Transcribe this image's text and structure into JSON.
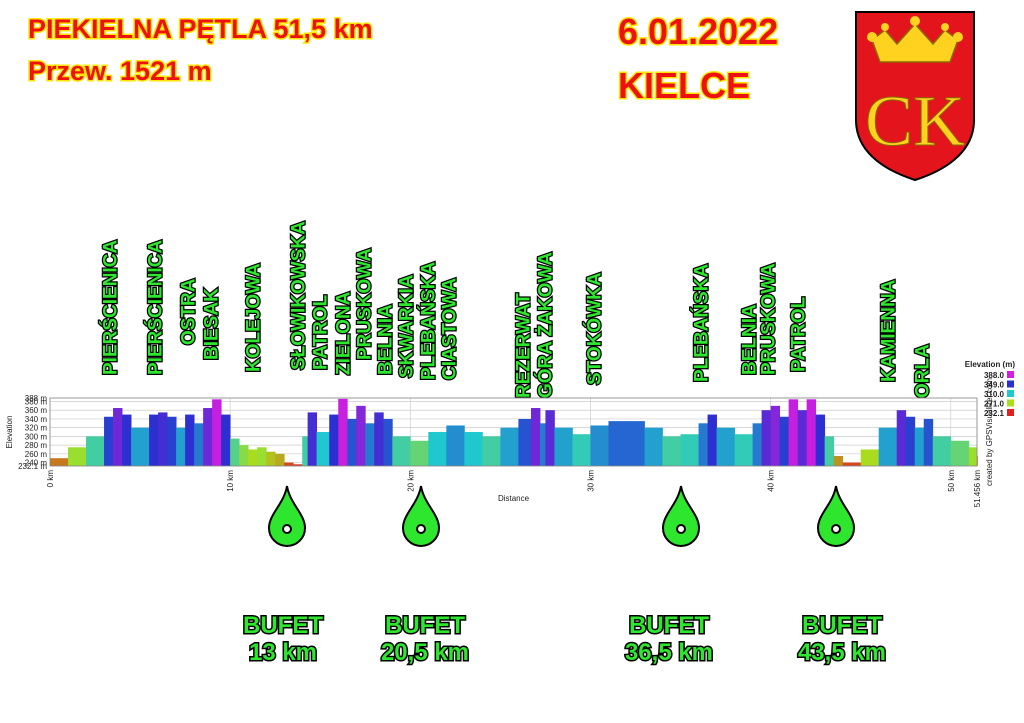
{
  "header": {
    "title": "PIEKIELNA PĘTLA 51,5 km",
    "ascent": "Przew. 1521 m",
    "date": "6.01.2022",
    "city": "KIELCE",
    "emblem": "CK"
  },
  "stations": [
    {
      "label": "BUFET",
      "distance": "13 km"
    },
    {
      "label": "BUFET",
      "distance": "20,5 km"
    },
    {
      "label": "BUFET",
      "distance": "36,5 km"
    },
    {
      "label": "BUFET",
      "distance": "43,5 km"
    }
  ],
  "chart_data": {
    "type": "area",
    "x_label": "Distance",
    "y_label": "Elevation",
    "credit": "created by GPSVisualizer.com",
    "x": [
      0,
      1,
      2,
      3,
      3.5,
      4,
      4.5,
      5,
      5.5,
      6,
      6.5,
      7,
      7.5,
      8,
      8.5,
      9,
      9.5,
      10,
      10.5,
      11,
      11.5,
      12,
      12.5,
      13,
      13.5,
      14,
      14.3,
      14.8,
      15.5,
      16,
      16.5,
      17,
      17.5,
      18,
      18.5,
      19,
      20,
      21,
      22,
      23,
      24,
      25,
      26,
      26.7,
      27.2,
      27.5,
      28,
      29,
      30,
      31,
      32,
      33,
      34,
      35,
      36,
      36.5,
      37,
      38,
      39,
      39.5,
      40,
      40.5,
      41,
      41.5,
      42,
      42.5,
      43,
      43.5,
      44,
      45,
      46,
      47,
      47.5,
      48,
      48.5,
      49,
      50,
      51,
      51.456
    ],
    "values": [
      250,
      275,
      300,
      345,
      365,
      350,
      320,
      320,
      350,
      355,
      345,
      320,
      350,
      330,
      365,
      385,
      350,
      295,
      280,
      270,
      275,
      265,
      260,
      240,
      236,
      300,
      355,
      310,
      350,
      386,
      340,
      370,
      330,
      355,
      340,
      300,
      290,
      310,
      325,
      310,
      300,
      320,
      340,
      365,
      330,
      360,
      320,
      305,
      325,
      335,
      335,
      320,
      300,
      305,
      330,
      350,
      320,
      305,
      330,
      360,
      370,
      345,
      385,
      360,
      385,
      350,
      300,
      255,
      240,
      270,
      320,
      360,
      345,
      320,
      340,
      300,
      290,
      275,
      255
    ],
    "xlim": [
      0,
      51.456
    ],
    "ylim": [
      232.1,
      388
    ],
    "xticks": [
      {
        "value": 0,
        "label": "0 km"
      },
      {
        "value": 10,
        "label": "10 km"
      },
      {
        "value": 20,
        "label": "20 km"
      },
      {
        "value": 30,
        "label": "30 km"
      },
      {
        "value": 40,
        "label": "40 km"
      },
      {
        "value": 50,
        "label": "50 km"
      },
      {
        "value": 51.456,
        "label": "51.456 km"
      }
    ],
    "yticks": [
      {
        "value": 232.1,
        "label": "232.1 m"
      },
      {
        "value": 240,
        "label": "240 m"
      },
      {
        "value": 260,
        "label": "260 m"
      },
      {
        "value": 280,
        "label": "280 m"
      },
      {
        "value": 300,
        "label": "300 m"
      },
      {
        "value": 320,
        "label": "320 m"
      },
      {
        "value": 340,
        "label": "340 m"
      },
      {
        "value": 360,
        "label": "360 m"
      },
      {
        "value": 380,
        "label": "380 m"
      },
      {
        "value": 388,
        "label": "388 m"
      }
    ],
    "grid": true,
    "color_scale": {
      "title": "Elevation (m)",
      "stops": [
        {
          "value": 388,
          "label": "388.0",
          "color": "#d21fe0"
        },
        {
          "value": 349,
          "label": "349.0",
          "color": "#2a2fd0"
        },
        {
          "value": 310,
          "label": "310.0",
          "color": "#1fc8cf"
        },
        {
          "value": 271,
          "label": "271.0",
          "color": "#a8e01e"
        },
        {
          "value": 232.1,
          "label": "232.1",
          "color": "#e0201e"
        }
      ]
    },
    "annotations": [
      "PIERŚCIENICA",
      "PIERŚCIENICA",
      "OSTRA",
      "BIESAK",
      "KOLEJOWA",
      "SŁOWIKOWSKA",
      "PATROL",
      "ZIELONA",
      "PRUSKOWA",
      "BELNIA",
      "SKWARKIA",
      "PLEBAŃSKA",
      "CIASTOWA",
      "REZERWAT",
      "GÓRA ŻAKOWA",
      "STOKÓWKA",
      "PLEBAŃSKA",
      "BELNIA",
      "PRUSKOWA",
      "PATROL",
      "KAMIENNA",
      "ORLA"
    ]
  }
}
